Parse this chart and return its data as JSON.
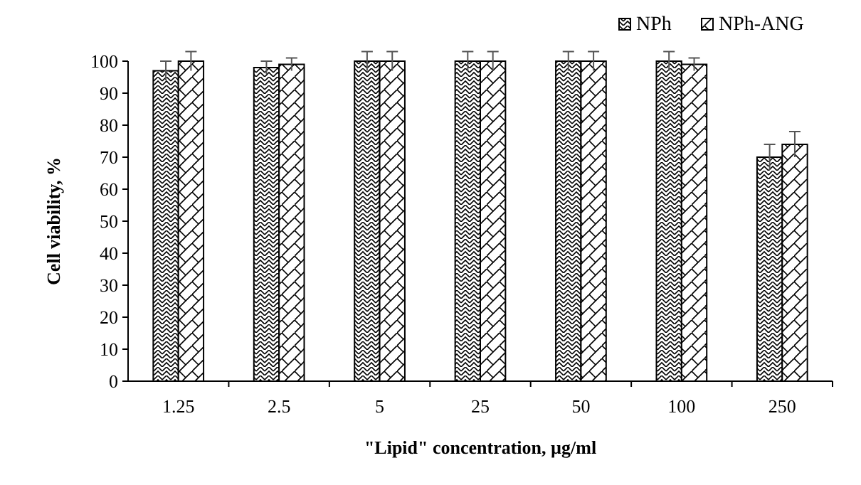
{
  "chart_data": {
    "type": "bar",
    "xlabel": "\"Lipid\"  concentration,  µg/ml",
    "ylabel": "Cell viability,  %",
    "categories": [
      "1.25",
      "2.5",
      "5",
      "25",
      "50",
      "100",
      "250"
    ],
    "series": [
      {
        "name": "NPh",
        "color": "#000000",
        "values": [
          97,
          98,
          100,
          100,
          100,
          100,
          70
        ],
        "errors": [
          3,
          2,
          3,
          3,
          3,
          3,
          4
        ]
      },
      {
        "name": "NPh-ANG",
        "color": "#000000",
        "values": [
          100,
          99,
          100,
          100,
          100,
          99,
          74
        ],
        "errors": [
          3,
          2,
          3,
          3,
          3,
          2,
          4
        ]
      }
    ],
    "ylim": [
      0,
      100
    ],
    "yticks": [
      0,
      10,
      20,
      30,
      40,
      50,
      60,
      70,
      80,
      90,
      100
    ],
    "legend": "top right",
    "grid": false
  }
}
